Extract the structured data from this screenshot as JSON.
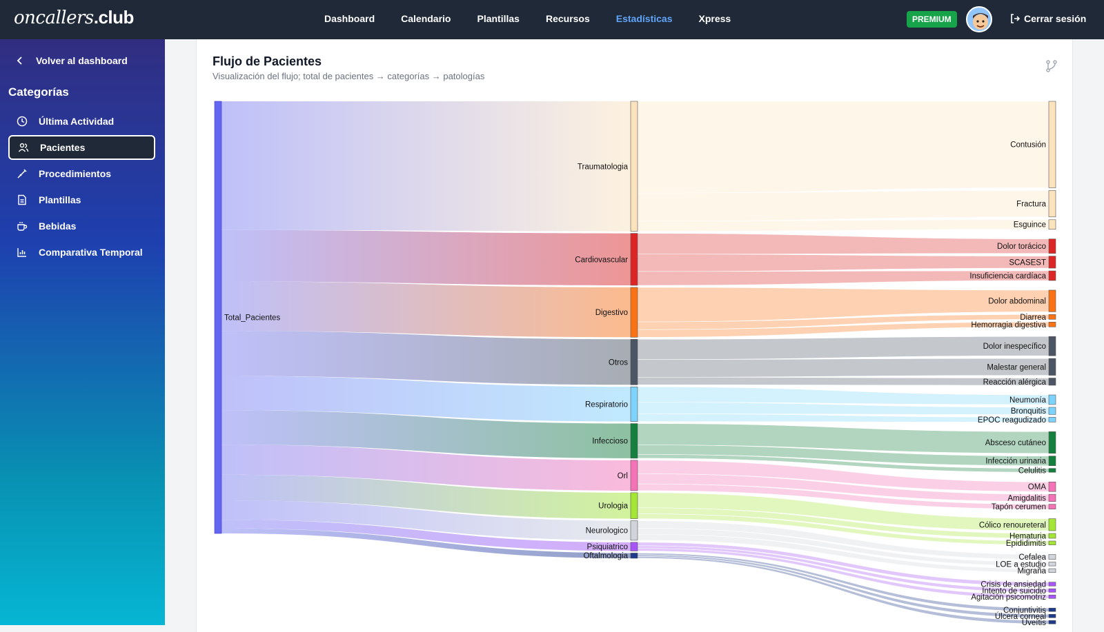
{
  "header": {
    "logo_main": "oncallers",
    "logo_suffix": ".club",
    "nav": [
      {
        "label": "Dashboard"
      },
      {
        "label": "Calendario"
      },
      {
        "label": "Plantillas"
      },
      {
        "label": "Recursos"
      },
      {
        "label": "Estadísticas",
        "active": true
      },
      {
        "label": "Xpress"
      }
    ],
    "premium": "PREMIUM",
    "logout": "Cerrar sesión"
  },
  "sidebar": {
    "back": "Volver al dashboard",
    "title": "Categorías",
    "items": [
      {
        "label": "Última Actividad",
        "icon": "clock-icon"
      },
      {
        "label": "Pacientes",
        "icon": "users-icon",
        "active": true
      },
      {
        "label": "Procedimientos",
        "icon": "syringe-icon"
      },
      {
        "label": "Plantillas",
        "icon": "document-icon"
      },
      {
        "label": "Bebidas",
        "icon": "coffee-icon"
      },
      {
        "label": "Comparativa Temporal",
        "icon": "bar-chart-icon"
      }
    ]
  },
  "card": {
    "title": "Flujo de Pacientes",
    "subtitle": "Visualización del flujo; total de pacientes → categorías → patologías"
  },
  "colors": {
    "Total_Pacientes": "#6366f1",
    "Traumatologia": "#fbe3bd",
    "Cardiovascular": "#dc2626",
    "Digestivo": "#f97316",
    "Otros": "#4b5563",
    "Respiratorio": "#7dd3fc",
    "Infeccioso": "#15803d",
    "Orl": "#f472b6",
    "Urologia": "#a3e635",
    "Neurologico": "#d1d5db",
    "Psiquiatrico": "#a855f7",
    "Oftalmologia": "#1e3a8a"
  },
  "chart_data": {
    "type": "sankey",
    "source": "Total_Pacientes",
    "categories": [
      {
        "name": "Traumatologia",
        "value": 30,
        "children": [
          {
            "name": "Contusión",
            "value": 18
          },
          {
            "name": "Fractura",
            "value": 5.5
          },
          {
            "name": "Esguince",
            "value": 2
          }
        ]
      },
      {
        "name": "Cardiovascular",
        "value": 12,
        "children": [
          {
            "name": "Dolor torácico",
            "value": 3
          },
          {
            "name": "SCASEST",
            "value": 2.5
          },
          {
            "name": "Insuficiencia cardíaca",
            "value": 2
          }
        ]
      },
      {
        "name": "Digestivo",
        "value": 11.5,
        "children": [
          {
            "name": "Dolor abdominal",
            "value": 4.5
          },
          {
            "name": "Diarrea",
            "value": 1
          },
          {
            "name": "Hemorragia digestiva",
            "value": 1
          }
        ]
      },
      {
        "name": "Otros",
        "value": 10.5,
        "children": [
          {
            "name": "Dolor inespecífico",
            "value": 4
          },
          {
            "name": "Malestar general",
            "value": 3.5
          },
          {
            "name": "Reacción alérgica",
            "value": 1.5
          }
        ]
      },
      {
        "name": "Respiratorio",
        "value": 8,
        "children": [
          {
            "name": "Neumonía",
            "value": 2
          },
          {
            "name": "Bronquitis",
            "value": 1.5
          },
          {
            "name": "EPOC reagudizado",
            "value": 1
          }
        ]
      },
      {
        "name": "Infeccioso",
        "value": 8,
        "children": [
          {
            "name": "Absceso cutáneo",
            "value": 4.5
          },
          {
            "name": "Infección urinaria",
            "value": 2
          },
          {
            "name": "Celulitis",
            "value": 0.8
          }
        ]
      },
      {
        "name": "Orl",
        "value": 7,
        "children": [
          {
            "name": "OMA",
            "value": 2
          },
          {
            "name": "Amigdalitis",
            "value": 1.5
          },
          {
            "name": "Tapón cerumen",
            "value": 1
          }
        ]
      },
      {
        "name": "Urologia",
        "value": 6,
        "children": [
          {
            "name": "Cólico renoureteral",
            "value": 2.5
          },
          {
            "name": "Hematuria",
            "value": 1
          },
          {
            "name": "Epididimitis",
            "value": 0.8
          }
        ]
      },
      {
        "name": "Neurologico",
        "value": 4.5,
        "children": [
          {
            "name": "Cefalea",
            "value": 1
          },
          {
            "name": "LOE a estudio",
            "value": 0.8
          },
          {
            "name": "Migraña",
            "value": 0.8
          }
        ]
      },
      {
        "name": "Psiquiatrico",
        "value": 2,
        "children": [
          {
            "name": "Crisis de ansiedad",
            "value": 0.8
          },
          {
            "name": "Intento de suicidio",
            "value": 0.6
          },
          {
            "name": "Agitación psicomotriz",
            "value": 0.6
          }
        ]
      },
      {
        "name": "Oftalmologia",
        "value": 1.2,
        "children": [
          {
            "name": "Conjuntivitis",
            "value": 0.4
          },
          {
            "name": "Úlcera corneal",
            "value": 0.4
          },
          {
            "name": "Uveítis",
            "value": 0.4
          }
        ]
      }
    ]
  }
}
